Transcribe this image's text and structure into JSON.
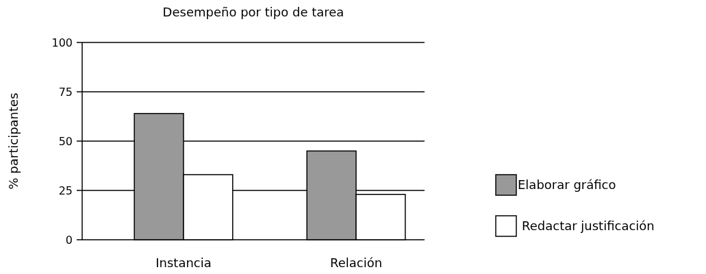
{
  "chart_data": {
    "type": "bar",
    "title": "Desempeño por tipo de tarea",
    "ylabel": "% participantes",
    "categories": [
      "Instancia",
      "Relación"
    ],
    "series": [
      {
        "name": "Elaborar gráfico",
        "color": "#999999",
        "values": [
          64,
          45
        ]
      },
      {
        "name": "Redactar justificación",
        "color": "#ffffff",
        "values": [
          33,
          23
        ]
      }
    ],
    "ylim": [
      0,
      100
    ],
    "yticks": [
      0,
      25,
      50,
      75,
      100
    ],
    "grid": "y",
    "legend": "right"
  }
}
